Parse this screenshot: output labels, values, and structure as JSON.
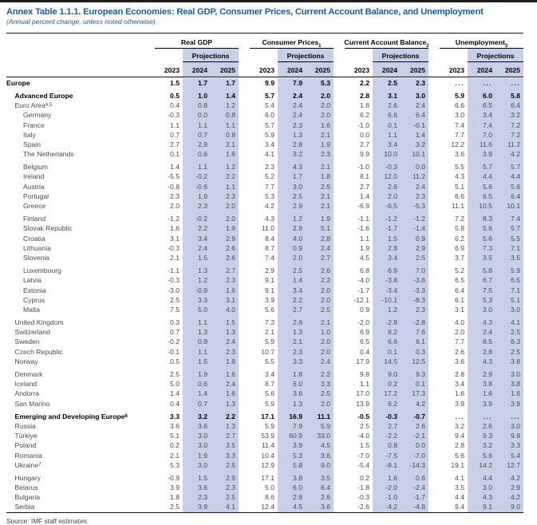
{
  "page": {
    "title": "Annex Table 1.1.1. European Economies: Real GDP, Consumer Prices, Current Account Balance, and Unemployment",
    "subtitle": "(Annual percent change, unless noted otherwise)",
    "source": "Source: IMF staff estimates."
  },
  "colors": {
    "accent_blue": "#1a5ca8",
    "projection_band": "#c7d0e8",
    "rule_black": "#111111"
  },
  "table": {
    "header": {
      "groups": [
        {
          "label": "Real GDP",
          "sup": ""
        },
        {
          "label": "Consumer Prices",
          "sup": "1"
        },
        {
          "label": "Current Account Balance",
          "sup": "2"
        },
        {
          "label": "Unemployment",
          "sup": "3"
        }
      ],
      "projections_label": "Projections",
      "years": [
        "2023",
        "2024",
        "2025"
      ]
    },
    "rows": [
      {
        "label": "Europe",
        "sup": "",
        "indent": 0,
        "bold": true,
        "gap_before": false,
        "values": [
          "1.5",
          "1.7",
          "1.7",
          "9.9",
          "7.9",
          "5.3",
          "2.2",
          "2.5",
          "2.3",
          "...",
          "...",
          "..."
        ]
      },
      {
        "label": "Advanced Europe",
        "sup": "",
        "indent": 1,
        "bold": true,
        "gap_before": true,
        "values": [
          "0.5",
          "1.0",
          "1.4",
          "5.7",
          "2.4",
          "2.0",
          "2.8",
          "3.1",
          "3.0",
          "5.9",
          "6.0",
          "5.8"
        ]
      },
      {
        "label": "Euro Area",
        "sup": "4,5",
        "indent": 1,
        "bold": false,
        "gap_before": false,
        "values": [
          "0.4",
          "0.8",
          "1.2",
          "5.4",
          "2.4",
          "2.0",
          "1.6",
          "2.6",
          "2.4",
          "6.6",
          "6.5",
          "6.4"
        ]
      },
      {
        "label": "Germany",
        "sup": "",
        "indent": 2,
        "bold": false,
        "gap_before": false,
        "values": [
          "-0.3",
          "0.0",
          "0.8",
          "6.0",
          "2.4",
          "2.0",
          "6.2",
          "6.6",
          "6.4",
          "3.0",
          "3.4",
          "3.2"
        ]
      },
      {
        "label": "France",
        "sup": "",
        "indent": 2,
        "bold": false,
        "gap_before": false,
        "values": [
          "1.1",
          "1.1",
          "1.1",
          "5.7",
          "2.3",
          "1.6",
          "-1.0",
          "0.1",
          "-0.1",
          "7.4",
          "7.4",
          "7.2"
        ]
      },
      {
        "label": "Italy",
        "sup": "",
        "indent": 2,
        "bold": false,
        "gap_before": false,
        "values": [
          "0.7",
          "0.7",
          "0.8",
          "5.9",
          "1.3",
          "2.1",
          "0.0",
          "1.1",
          "1.4",
          "7.7",
          "7.0",
          "7.2"
        ]
      },
      {
        "label": "Spain",
        "sup": "",
        "indent": 2,
        "bold": false,
        "gap_before": false,
        "values": [
          "2.7",
          "2.9",
          "2.1",
          "3.4",
          "2.8",
          "1.9",
          "2.7",
          "3.4",
          "3.2",
          "12.2",
          "11.6",
          "11.2"
        ]
      },
      {
        "label": "The Netherlands",
        "sup": "",
        "indent": 2,
        "bold": false,
        "gap_before": false,
        "values": [
          "0.1",
          "0.6",
          "1.6",
          "4.1",
          "3.2",
          "2.3",
          "9.9",
          "10.0",
          "10.1",
          "3.6",
          "3.9",
          "4.2"
        ]
      },
      {
        "label": "Belgium",
        "sup": "",
        "indent": 2,
        "bold": false,
        "gap_before": true,
        "values": [
          "1.4",
          "1.1",
          "1.2",
          "2.3",
          "4.3",
          "2.1",
          "-1.0",
          "-0.3",
          "0.0",
          "5.5",
          "5.7",
          "5.7"
        ]
      },
      {
        "label": "Ireland",
        "sup": "",
        "indent": 2,
        "bold": false,
        "gap_before": false,
        "values": [
          "-5.5",
          "-0.2",
          "2.2",
          "5.2",
          "1.7",
          "1.8",
          "8.1",
          "12.0",
          "11.2",
          "4.3",
          "4.4",
          "4.4"
        ]
      },
      {
        "label": "Austria",
        "sup": "",
        "indent": 2,
        "bold": false,
        "gap_before": false,
        "values": [
          "-0.8",
          "-0.6",
          "1.1",
          "7.7",
          "3.0",
          "2.5",
          "2.7",
          "2.6",
          "2.4",
          "5.1",
          "5.6",
          "5.6"
        ]
      },
      {
        "label": "Portugal",
        "sup": "",
        "indent": 2,
        "bold": false,
        "gap_before": false,
        "values": [
          "2.3",
          "1.9",
          "2.3",
          "5.3",
          "2.5",
          "2.1",
          "1.4",
          "2.0",
          "2.3",
          "6.6",
          "6.5",
          "6.4"
        ]
      },
      {
        "label": "Greece",
        "sup": "",
        "indent": 2,
        "bold": false,
        "gap_before": false,
        "values": [
          "2.0",
          "2.3",
          "2.0",
          "4.2",
          "2.9",
          "2.1",
          "-6.9",
          "-6.5",
          "-5.3",
          "11.1",
          "10.5",
          "10.1"
        ]
      },
      {
        "label": "Finland",
        "sup": "",
        "indent": 2,
        "bold": false,
        "gap_before": true,
        "values": [
          "-1.2",
          "-0.2",
          "2.0",
          "4.3",
          "1.2",
          "1.9",
          "-1.1",
          "-1.2",
          "-1.2",
          "7.2",
          "8.3",
          "7.4"
        ]
      },
      {
        "label": "Slovak Republic",
        "sup": "",
        "indent": 2,
        "bold": false,
        "gap_before": false,
        "values": [
          "1.6",
          "2.2",
          "1.9",
          "11.0",
          "2.8",
          "5.1",
          "-1.6",
          "-1.7",
          "-1.4",
          "5.8",
          "5.6",
          "5.7"
        ]
      },
      {
        "label": "Croatia",
        "sup": "",
        "indent": 2,
        "bold": false,
        "gap_before": false,
        "values": [
          "3.1",
          "3.4",
          "2.9",
          "8.4",
          "4.0",
          "2.8",
          "1.1",
          "1.5",
          "0.9",
          "6.2",
          "5.6",
          "5.5"
        ]
      },
      {
        "label": "Lithuania",
        "sup": "",
        "indent": 2,
        "bold": false,
        "gap_before": false,
        "values": [
          "-0.3",
          "2.4",
          "2.6",
          "8.7",
          "0.9",
          "2.4",
          "1.9",
          "2.8",
          "2.9",
          "6.9",
          "7.3",
          "7.1"
        ]
      },
      {
        "label": "Slovenia",
        "sup": "",
        "indent": 2,
        "bold": false,
        "gap_before": false,
        "values": [
          "2.1",
          "1.5",
          "2.6",
          "7.4",
          "2.0",
          "2.7",
          "4.5",
          "3.4",
          "2.5",
          "3.7",
          "3.5",
          "3.5"
        ]
      },
      {
        "label": "Luxembourg",
        "sup": "",
        "indent": 2,
        "bold": false,
        "gap_before": true,
        "values": [
          "-1.1",
          "1.3",
          "2.7",
          "2.9",
          "2.5",
          "2.6",
          "6.8",
          "6.9",
          "7.0",
          "5.2",
          "5.8",
          "5.9"
        ]
      },
      {
        "label": "Latvia",
        "sup": "",
        "indent": 2,
        "bold": false,
        "gap_before": false,
        "values": [
          "-0.3",
          "1.2",
          "2.3",
          "9.1",
          "1.4",
          "2.2",
          "-4.0",
          "-3.8",
          "-3.6",
          "6.5",
          "6.7",
          "6.5"
        ]
      },
      {
        "label": "Estonia",
        "sup": "",
        "indent": 2,
        "bold": false,
        "gap_before": false,
        "values": [
          "-3.0",
          "-0.9",
          "1.6",
          "9.1",
          "3.4",
          "2.0",
          "-1.7",
          "-3.4",
          "-3.3",
          "6.4",
          "7.5",
          "7.1"
        ]
      },
      {
        "label": "Cyprus",
        "sup": "",
        "indent": 2,
        "bold": false,
        "gap_before": false,
        "values": [
          "2.5",
          "3.3",
          "3.1",
          "3.9",
          "2.2",
          "2.0",
          "-12.1",
          "-10.1",
          "-8.3",
          "6.1",
          "5.3",
          "5.1"
        ]
      },
      {
        "label": "Malta",
        "sup": "",
        "indent": 2,
        "bold": false,
        "gap_before": false,
        "values": [
          "7.5",
          "5.0",
          "4.0",
          "5.6",
          "2.7",
          "2.5",
          "0.9",
          "1.2",
          "2.3",
          "3.1",
          "3.0",
          "3.0"
        ]
      },
      {
        "label": "United Kingdom",
        "sup": "",
        "indent": 1,
        "bold": false,
        "gap_before": true,
        "values": [
          "0.3",
          "1.1",
          "1.5",
          "7.3",
          "2.6",
          "2.1",
          "-2.0",
          "-2.8",
          "-2.8",
          "4.0",
          "4.3",
          "4.1"
        ]
      },
      {
        "label": "Switzerland",
        "sup": "",
        "indent": 1,
        "bold": false,
        "gap_before": false,
        "values": [
          "0.7",
          "1.3",
          "1.3",
          "2.1",
          "1.3",
          "1.0",
          "6.9",
          "8.2",
          "7.6",
          "2.0",
          "2.4",
          "2.5"
        ]
      },
      {
        "label": "Sweden",
        "sup": "",
        "indent": 1,
        "bold": false,
        "gap_before": false,
        "values": [
          "-0.2",
          "0.9",
          "2.4",
          "5.9",
          "2.1",
          "2.0",
          "6.5",
          "6.6",
          "6.1",
          "7.7",
          "8.5",
          "8.3"
        ]
      },
      {
        "label": "Czech Republic",
        "sup": "",
        "indent": 1,
        "bold": false,
        "gap_before": false,
        "values": [
          "-0.1",
          "1.1",
          "2.3",
          "10.7",
          "2.3",
          "2.0",
          "0.4",
          "0.1",
          "0.3",
          "2.6",
          "2.8",
          "2.5"
        ]
      },
      {
        "label": "Norway",
        "sup": "",
        "indent": 1,
        "bold": false,
        "gap_before": false,
        "values": [
          "0.5",
          "1.5",
          "1.8",
          "5.5",
          "3.3",
          "2.4",
          "17.9",
          "14.5",
          "12.5",
          "3.6",
          "4.3",
          "3.8"
        ]
      },
      {
        "label": "Denmark",
        "sup": "",
        "indent": 1,
        "bold": false,
        "gap_before": true,
        "values": [
          "2.5",
          "1.9",
          "1.6",
          "3.4",
          "1.8",
          "2.2",
          "9.8",
          "9.0",
          "9.3",
          "2.8",
          "2.9",
          "3.0"
        ]
      },
      {
        "label": "Iceland",
        "sup": "",
        "indent": 1,
        "bold": false,
        "gap_before": false,
        "values": [
          "5.0",
          "0.6",
          "2.4",
          "8.7",
          "6.0",
          "3.3",
          "1.1",
          "0.2",
          "0.1",
          "3.4",
          "3.8",
          "3.8"
        ]
      },
      {
        "label": "Andorra",
        "sup": "",
        "indent": 1,
        "bold": false,
        "gap_before": false,
        "values": [
          "1.4",
          "1.4",
          "1.6",
          "5.6",
          "3.6",
          "2.5",
          "17.0",
          "17.2",
          "17.3",
          "1.6",
          "1.6",
          "1.6"
        ]
      },
      {
        "label": "San Marino",
        "sup": "",
        "indent": 1,
        "bold": false,
        "gap_before": false,
        "values": [
          "0.4",
          "0.7",
          "1.3",
          "5.9",
          "1.3",
          "2.0",
          "13.9",
          "6.2",
          "4.2",
          "3.9",
          "3.9",
          "3.9"
        ]
      },
      {
        "label": "Emerging and Developing Europe",
        "sup": "6",
        "indent": 1,
        "bold": true,
        "gap_before": true,
        "values": [
          "3.3",
          "3.2",
          "2.2",
          "17.1",
          "16.9",
          "11.1",
          "-0.5",
          "-0.3",
          "-0.7",
          "...",
          "...",
          "..."
        ]
      },
      {
        "label": "Russia",
        "sup": "",
        "indent": 1,
        "bold": false,
        "gap_before": false,
        "values": [
          "3.6",
          "3.6",
          "1.3",
          "5.9",
          "7.9",
          "5.9",
          "2.5",
          "2.7",
          "2.6",
          "3.2",
          "2.6",
          "3.0"
        ]
      },
      {
        "label": "Türkiye",
        "sup": "",
        "indent": 1,
        "bold": false,
        "gap_before": false,
        "values": [
          "5.1",
          "3.0",
          "2.7",
          "53.9",
          "60.9",
          "33.0",
          "-4.0",
          "-2.2",
          "-2.1",
          "9.4",
          "9.3",
          "9.9"
        ]
      },
      {
        "label": "Poland",
        "sup": "",
        "indent": 1,
        "bold": false,
        "gap_before": false,
        "values": [
          "0.2",
          "3.0",
          "3.5",
          "11.4",
          "3.9",
          "4.5",
          "1.5",
          "0.8",
          "0.0",
          "2.8",
          "3.2",
          "3.3"
        ]
      },
      {
        "label": "Romania",
        "sup": "",
        "indent": 1,
        "bold": false,
        "gap_before": false,
        "values": [
          "2.1",
          "1.9",
          "3.3",
          "10.4",
          "5.3",
          "3.6",
          "-7.0",
          "-7.5",
          "-7.0",
          "5.6",
          "5.6",
          "5.4"
        ]
      },
      {
        "label": "Ukraine",
        "sup": "7",
        "indent": 1,
        "bold": false,
        "gap_before": false,
        "values": [
          "5.3",
          "3.0",
          "2.5",
          "12.9",
          "5.8",
          "9.0",
          "-5.4",
          "-8.1",
          "-14.3",
          "19.1",
          "14.2",
          "12.7"
        ]
      },
      {
        "label": "Hungary",
        "sup": "",
        "indent": 1,
        "bold": false,
        "gap_before": true,
        "values": [
          "-0.9",
          "1.5",
          "2.9",
          "17.1",
          "3.8",
          "3.5",
          "0.2",
          "1.6",
          "0.6",
          "4.1",
          "4.4",
          "4.2"
        ]
      },
      {
        "label": "Belarus",
        "sup": "",
        "indent": 1,
        "bold": false,
        "gap_before": false,
        "values": [
          "3.9",
          "3.6",
          "2.3",
          "5.0",
          "6.0",
          "6.4",
          "-1.8",
          "-2.0",
          "-2.4",
          "3.5",
          "3.0",
          "2.9"
        ]
      },
      {
        "label": "Bulgaria",
        "sup": "",
        "indent": 1,
        "bold": false,
        "gap_before": false,
        "values": [
          "1.8",
          "2.3",
          "2.5",
          "8.6",
          "2.8",
          "2.6",
          "-0.3",
          "-1.0",
          "-1.7",
          "4.4",
          "4.3",
          "4.2"
        ]
      },
      {
        "label": "Serbia",
        "sup": "",
        "indent": 1,
        "bold": false,
        "gap_before": false,
        "values": [
          "2.5",
          "3.9",
          "4.1",
          "12.4",
          "4.5",
          "3.6",
          "-2.6",
          "-4.2",
          "-4.8",
          "9.4",
          "9.1",
          "9.0"
        ]
      }
    ]
  }
}
